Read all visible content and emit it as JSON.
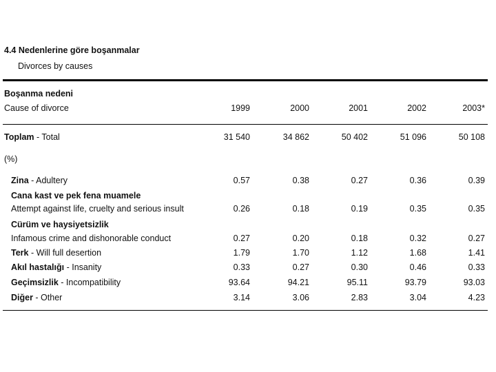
{
  "title": "4.4 Nedenlerine göre boşanmalar",
  "subtitle": "Divorces by causes",
  "header": {
    "label_tr": "Boşanma nedeni",
    "label_en": "Cause of divorce",
    "years": [
      "1999",
      "2000",
      "2001",
      "2002",
      "2003*"
    ]
  },
  "total": {
    "label_bold": "Toplam",
    "label_rest": " - Total",
    "values": [
      "31 540",
      "34 862",
      "50 402",
      "51 096",
      "50 108"
    ]
  },
  "percent_label": "(%)",
  "rows": [
    {
      "bold": "Zina",
      "rest": " - Adultery",
      "values": [
        "0.57",
        "0.38",
        "0.27",
        "0.36",
        "0.39"
      ]
    },
    {
      "group": "Cana kast ve pek fena muamele",
      "rest": "Attempt against life, cruelty and serious insult",
      "values": [
        "0.26",
        "0.18",
        "0.19",
        "0.35",
        "0.35"
      ]
    },
    {
      "group": "Cürüm ve haysiyetsizlik",
      "rest": "Infamous crime and dishonorable conduct",
      "values": [
        "0.27",
        "0.20",
        "0.18",
        "0.32",
        "0.27"
      ]
    },
    {
      "bold": "Terk",
      "rest": " - Will full desertion",
      "values": [
        "1.79",
        "1.70",
        "1.12",
        "1.68",
        "1.41"
      ]
    },
    {
      "bold": "Akıl hastalığı",
      "rest": " - Insanity",
      "values": [
        "0.33",
        "0.27",
        "0.30",
        "0.46",
        "0.33"
      ]
    },
    {
      "bold": "Geçimsizlik",
      "rest": " - Incompatibility",
      "values": [
        "93.64",
        "94.21",
        "95.11",
        "93.79",
        "93.03"
      ]
    },
    {
      "bold": "Diğer",
      "rest": " - Other",
      "values": [
        "3.14",
        "3.06",
        "2.83",
        "3.04",
        "4.23"
      ]
    }
  ]
}
